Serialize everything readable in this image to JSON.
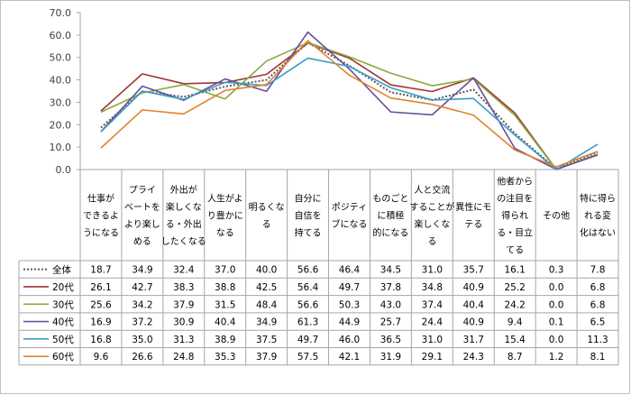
{
  "chart_data": {
    "type": "line",
    "title": "",
    "xlabel": "",
    "ylabel": "",
    "ylim": [
      0,
      70
    ],
    "yticks": [
      "0.0",
      "10.0",
      "20.0",
      "30.0",
      "40.0",
      "50.0",
      "60.0",
      "70.0"
    ],
    "grid": false,
    "legend": "data-table-left",
    "categories": [
      [
        "仕事が",
        "できるよ",
        "うになる"
      ],
      [
        "プライ",
        "ベートを",
        "より楽し",
        "める"
      ],
      [
        "外出が",
        "楽しくな",
        "る・外出",
        "したくなる"
      ],
      [
        "人生がよ",
        "り豊かに",
        "なる"
      ],
      [
        "明るくな",
        "る"
      ],
      [
        "自分に",
        "自信を",
        "持てる"
      ],
      [
        "ポジティ",
        "ブになる"
      ],
      [
        "ものごと",
        "に積極",
        "的になる"
      ],
      [
        "人と交流",
        "することが",
        "楽しくな",
        "る"
      ],
      [
        "異性にモ",
        "テる"
      ],
      [
        "他者から",
        "の注目を",
        "得られ",
        "る・目立",
        "てる"
      ],
      [
        "その他"
      ],
      [
        "特に得ら",
        "れる変",
        "化はない"
      ]
    ],
    "series": [
      {
        "name": "全体",
        "color": "#595959",
        "dashed": true,
        "values": [
          18.7,
          34.9,
          32.4,
          37.0,
          40.0,
          56.6,
          46.4,
          34.5,
          31.0,
          35.7,
          16.1,
          0.3,
          7.8
        ]
      },
      {
        "name": "20代",
        "color": "#a33432",
        "dashed": false,
        "values": [
          26.1,
          42.7,
          38.3,
          38.8,
          42.5,
          56.4,
          49.7,
          37.8,
          34.8,
          40.9,
          25.2,
          0.0,
          6.8
        ]
      },
      {
        "name": "30代",
        "color": "#86aa3e",
        "dashed": false,
        "values": [
          25.6,
          34.2,
          37.9,
          31.5,
          48.4,
          56.6,
          50.3,
          43.0,
          37.4,
          40.4,
          24.2,
          0.0,
          6.8
        ]
      },
      {
        "name": "40代",
        "color": "#6a4f9a",
        "dashed": false,
        "values": [
          16.9,
          37.2,
          30.9,
          40.4,
          34.9,
          61.3,
          44.9,
          25.7,
          24.4,
          40.9,
          9.4,
          0.1,
          6.5
        ]
      },
      {
        "name": "50代",
        "color": "#3c9cc7",
        "dashed": false,
        "values": [
          16.8,
          35.0,
          31.3,
          38.9,
          37.5,
          49.7,
          46.0,
          36.5,
          31.0,
          31.7,
          15.4,
          0.0,
          11.3
        ]
      },
      {
        "name": "60代",
        "color": "#e2832d",
        "dashed": false,
        "values": [
          9.6,
          26.6,
          24.8,
          35.3,
          37.9,
          57.5,
          42.1,
          31.9,
          29.1,
          24.3,
          8.7,
          1.2,
          8.1
        ]
      }
    ]
  }
}
